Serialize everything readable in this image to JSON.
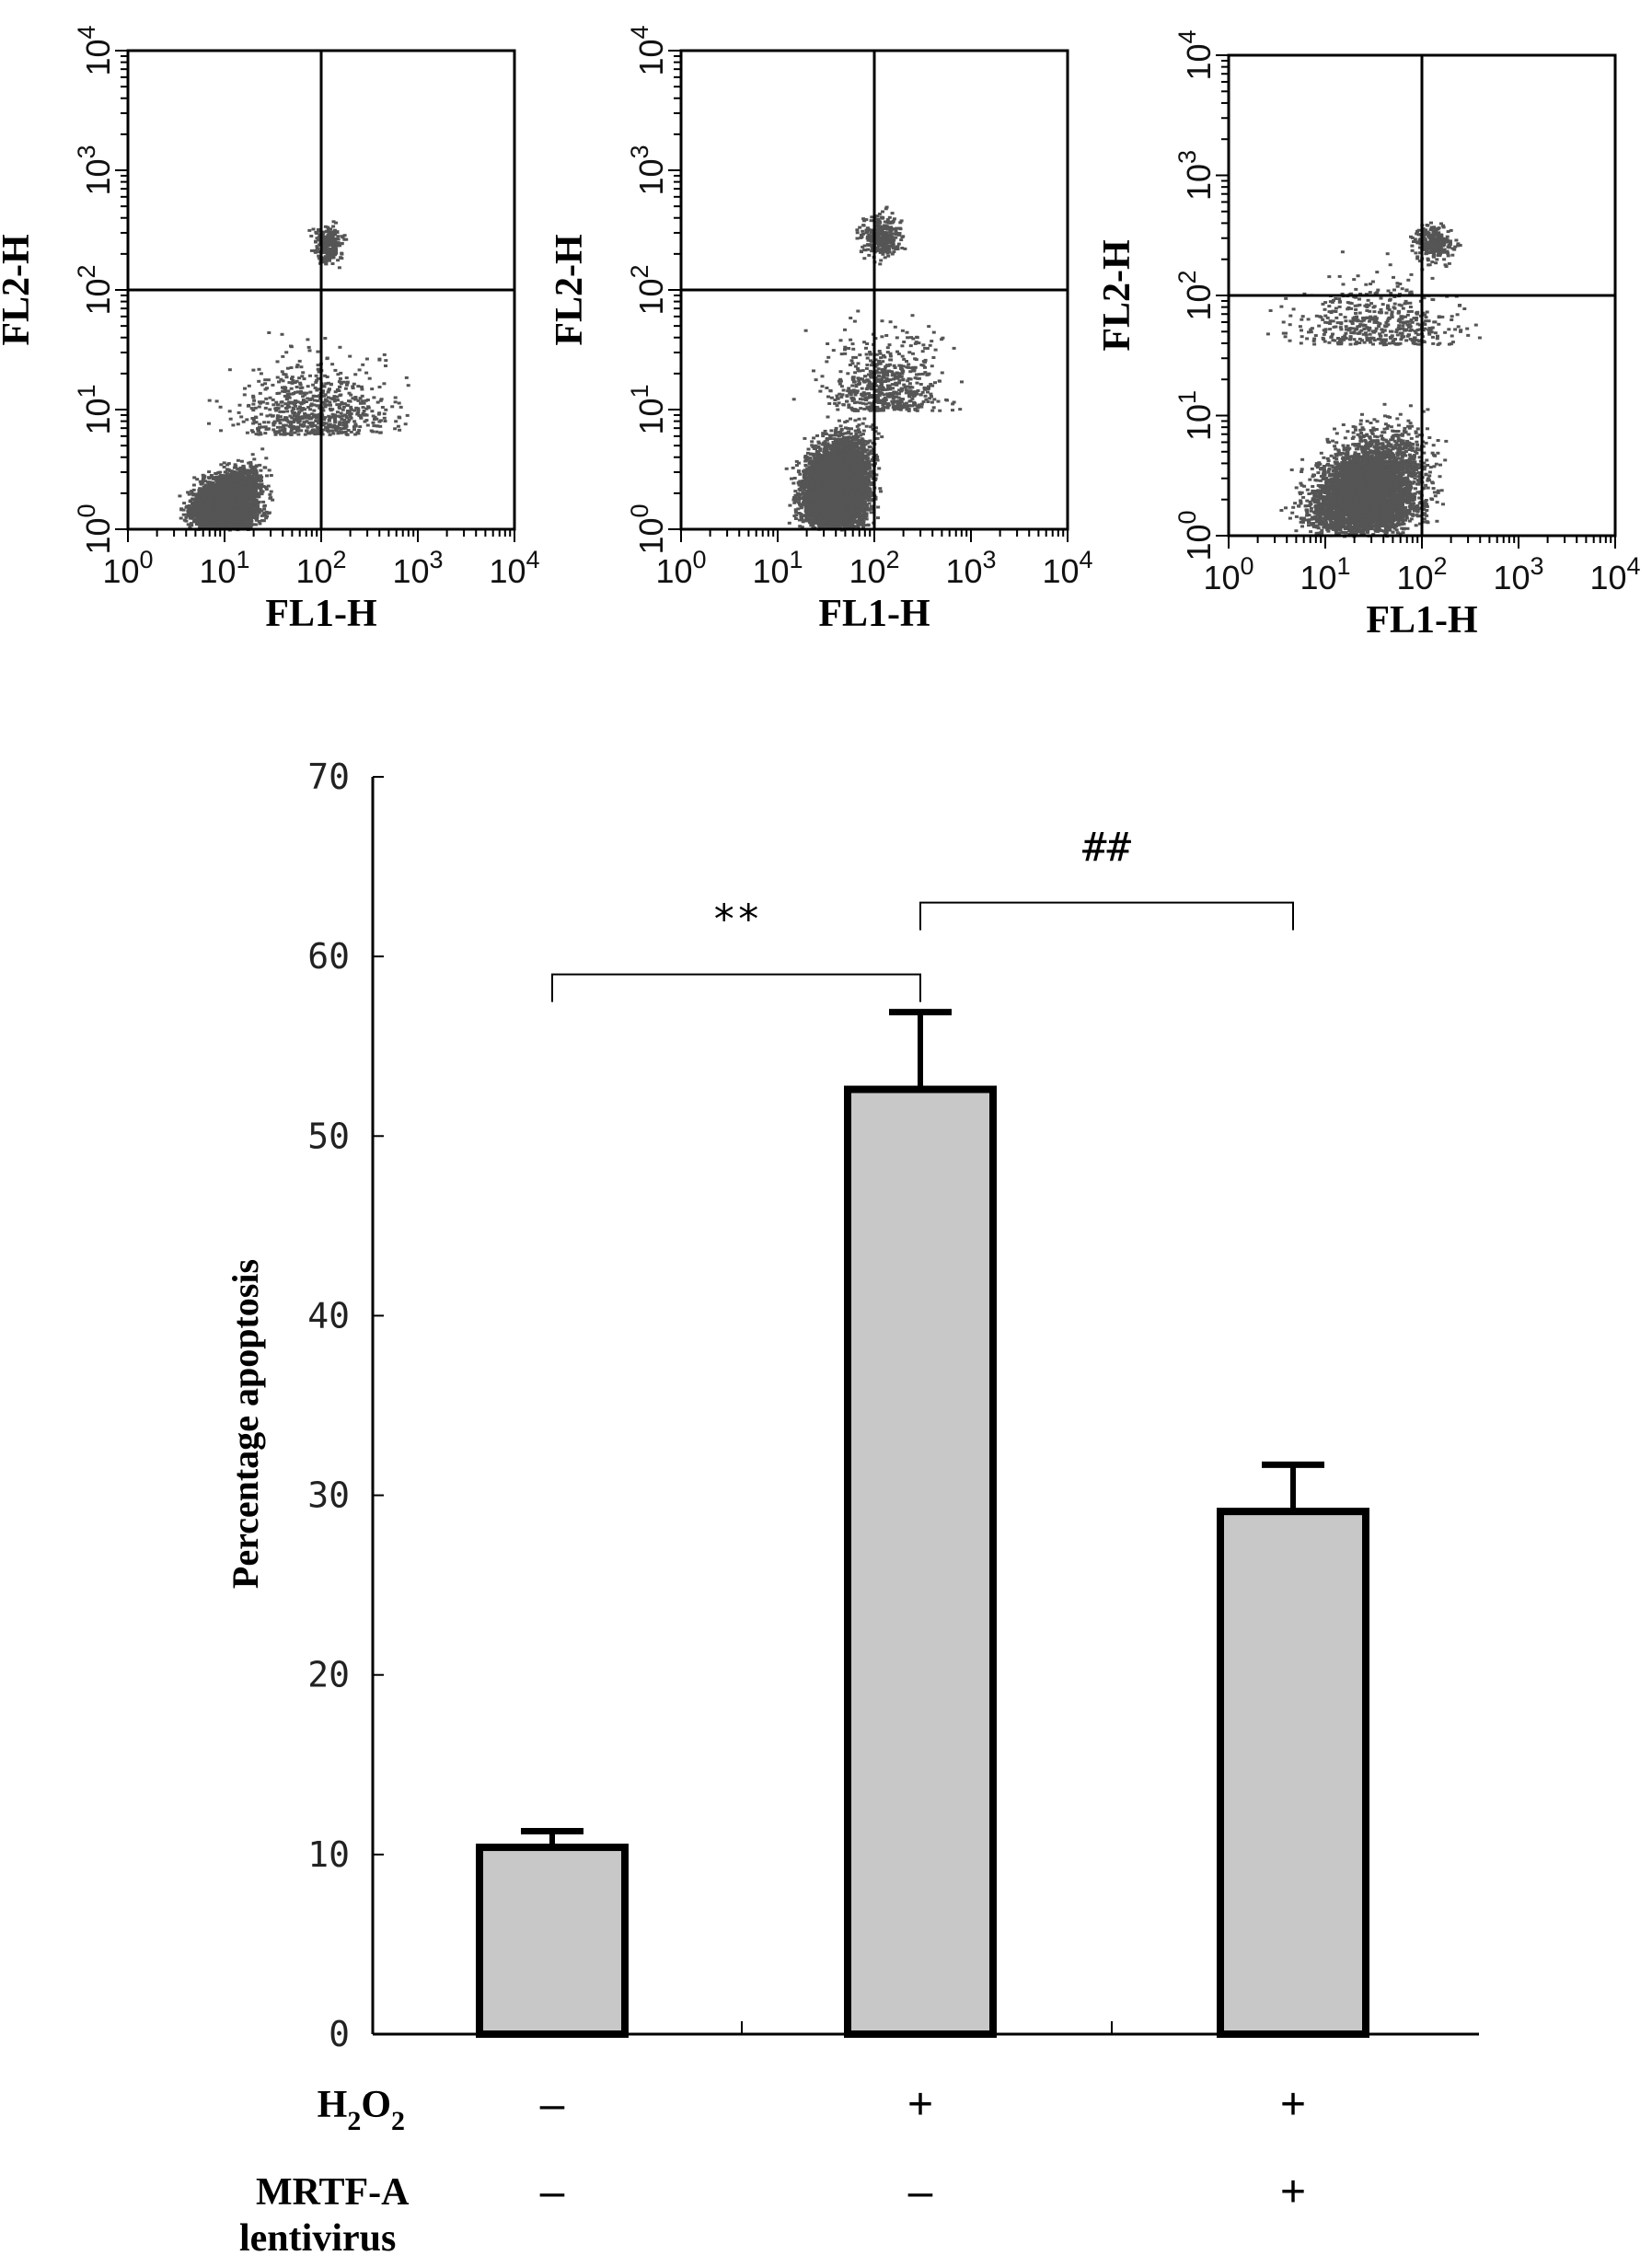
{
  "chart_data": [
    {
      "type": "scatter",
      "panel": 1,
      "xlabel": "FL1-H",
      "ylabel": "FL2-H",
      "scale": "log",
      "xlim": [
        1,
        10000
      ],
      "ylim": [
        1,
        10000
      ],
      "xticks": [
        "10^0",
        "10^1",
        "10^2",
        "10^3",
        "10^4"
      ],
      "yticks": [
        "10^0",
        "10^1",
        "10^2",
        "10^3",
        "10^4"
      ],
      "quadrant_gate": {
        "x": 100,
        "y": 100
      },
      "point_color": "#555555"
    },
    {
      "type": "scatter",
      "panel": 2,
      "xlabel": "FL1-H",
      "ylabel": "FL2-H",
      "scale": "log",
      "xlim": [
        1,
        10000
      ],
      "ylim": [
        1,
        10000
      ],
      "xticks": [
        "10^0",
        "10^1",
        "10^2",
        "10^3",
        "10^4"
      ],
      "yticks": [
        "10^0",
        "10^1",
        "10^2",
        "10^3",
        "10^4"
      ],
      "quadrant_gate": {
        "x": 100,
        "y": 100
      },
      "point_color": "#555555"
    },
    {
      "type": "scatter",
      "panel": 3,
      "xlabel": "FL1-H",
      "ylabel": "FL2-H",
      "scale": "log",
      "xlim": [
        1,
        10000
      ],
      "ylim": [
        1,
        10000
      ],
      "xticks": [
        "10^0",
        "10^1",
        "10^2",
        "10^3",
        "10^4"
      ],
      "yticks": [
        "10^0",
        "10^1",
        "10^2",
        "10^3",
        "10^4"
      ],
      "quadrant_gate": {
        "x": 100,
        "y": 100
      },
      "point_color": "#555555"
    },
    {
      "type": "bar",
      "ylabel": "Percentage apoptosis",
      "ylim": [
        0,
        70
      ],
      "yticks": [
        0,
        10,
        20,
        30,
        40,
        50,
        60,
        70
      ],
      "values": [
        10.4,
        52.6,
        29.1
      ],
      "errors": [
        0.9,
        4.3,
        2.6
      ],
      "bar_color": "#c8c8c8",
      "conditions": [
        {
          "label": "H2O2",
          "values": [
            "–",
            "+",
            "+"
          ]
        },
        {
          "label": "MRTF-A lentivirus",
          "label_lines": [
            "MRTF-A",
            "lentivirus"
          ],
          "values": [
            "–",
            "–",
            "+"
          ]
        }
      ],
      "annotations": [
        {
          "text": "**",
          "from": 0,
          "to": 1,
          "y": 59
        },
        {
          "text": "##",
          "from": 1,
          "to": 2,
          "y": 63
        }
      ]
    }
  ]
}
